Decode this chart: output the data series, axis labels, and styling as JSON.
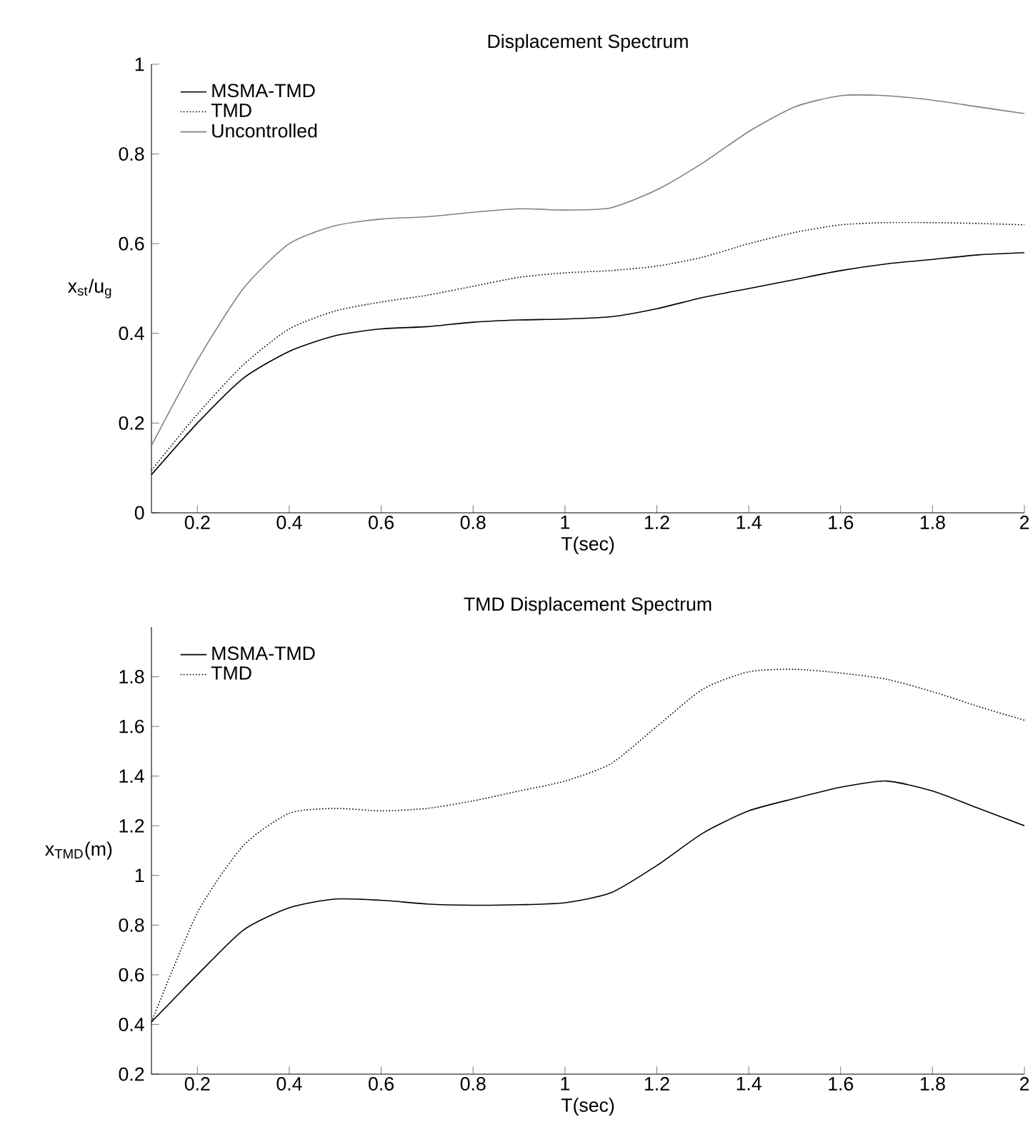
{
  "chart_data": [
    {
      "type": "line",
      "title": "Displacement Spectrum",
      "xlabel": "T(sec)",
      "ylabel": "x$_{st}$/u$_{g}$",
      "x": [
        0.1,
        0.2,
        0.3,
        0.4,
        0.5,
        0.6,
        0.7,
        0.8,
        0.9,
        1.0,
        1.1,
        1.2,
        1.3,
        1.4,
        1.5,
        1.6,
        1.7,
        1.8,
        1.9,
        2.0
      ],
      "xlim": [
        0.1,
        2
      ],
      "xticks": [
        0.2,
        0.4,
        0.6,
        0.8,
        1,
        1.2,
        1.4,
        1.6,
        1.8,
        2
      ],
      "ylim": [
        0,
        1
      ],
      "yticks": [
        0,
        0.2,
        0.4,
        0.6,
        0.8,
        1
      ],
      "legend": "top left",
      "grid": false,
      "marker": "none",
      "series": [
        {
          "name": "MSMA-TMD",
          "color": "#000000",
          "line_style": "solid",
          "values": [
            0.085,
            0.2,
            0.3,
            0.36,
            0.395,
            0.41,
            0.415,
            0.425,
            0.43,
            0.432,
            0.437,
            0.455,
            0.48,
            0.5,
            0.52,
            0.54,
            0.555,
            0.565,
            0.575,
            0.58
          ]
        },
        {
          "name": "TMD",
          "color": "#000000",
          "line_style": "dotted",
          "values": [
            0.095,
            0.22,
            0.33,
            0.41,
            0.45,
            0.47,
            0.485,
            0.505,
            0.525,
            0.535,
            0.54,
            0.55,
            0.57,
            0.6,
            0.625,
            0.642,
            0.647,
            0.647,
            0.645,
            0.642
          ]
        },
        {
          "name": "Uncontrolled",
          "color": "#808080",
          "line_style": "solid",
          "values": [
            0.15,
            0.34,
            0.5,
            0.6,
            0.64,
            0.655,
            0.66,
            0.67,
            0.678,
            0.675,
            0.68,
            0.72,
            0.78,
            0.85,
            0.905,
            0.93,
            0.93,
            0.92,
            0.905,
            0.89
          ]
        }
      ]
    },
    {
      "type": "line",
      "title": "TMD Displacement Spectrum",
      "xlabel": "T(sec)",
      "ylabel": "x$_{TMD}$(m)",
      "x": [
        0.1,
        0.2,
        0.3,
        0.4,
        0.5,
        0.6,
        0.7,
        0.8,
        0.9,
        1.0,
        1.1,
        1.2,
        1.3,
        1.4,
        1.5,
        1.6,
        1.7,
        1.8,
        1.9,
        2.0
      ],
      "xlim": [
        0.1,
        2
      ],
      "xticks": [
        0.2,
        0.4,
        0.6,
        0.8,
        1,
        1.2,
        1.4,
        1.6,
        1.8,
        2
      ],
      "ylim": [
        0.2,
        2
      ],
      "yticks": [
        0.2,
        0.4,
        0.6,
        0.8,
        1,
        1.2,
        1.4,
        1.6,
        1.8
      ],
      "legend": "top left",
      "grid": false,
      "marker": "none",
      "series": [
        {
          "name": "MSMA-TMD",
          "color": "#000000",
          "line_style": "solid",
          "values": [
            0.41,
            0.6,
            0.78,
            0.87,
            0.905,
            0.9,
            0.885,
            0.88,
            0.882,
            0.89,
            0.93,
            1.04,
            1.17,
            1.26,
            1.31,
            1.355,
            1.38,
            1.34,
            1.27,
            1.2
          ]
        },
        {
          "name": "TMD",
          "color": "#000000",
          "line_style": "dotted",
          "values": [
            0.41,
            0.85,
            1.12,
            1.25,
            1.27,
            1.26,
            1.27,
            1.3,
            1.34,
            1.38,
            1.45,
            1.6,
            1.75,
            1.82,
            1.83,
            1.815,
            1.79,
            1.74,
            1.68,
            1.625
          ]
        }
      ]
    }
  ]
}
